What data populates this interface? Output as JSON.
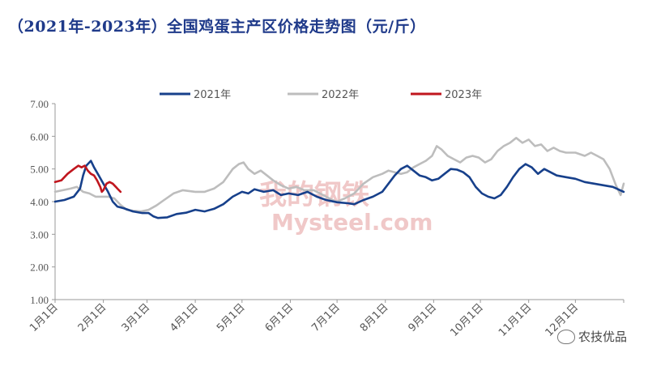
{
  "title": "（2021年-2023年）全国鸡蛋主产区价格走势图（元/斤）",
  "watermark": {
    "cn": "我的钢铁",
    "en": "Mysteel.com"
  },
  "brand": "农技优品",
  "colors": {
    "s2021": "#17408b",
    "s2022": "#bdbdbd",
    "s2023": "#c0161e"
  },
  "chart_data": {
    "type": "line",
    "ylim": [
      1.0,
      7.0
    ],
    "yticks": [
      "1.00",
      "2.00",
      "3.00",
      "4.00",
      "5.00",
      "6.00",
      "7.00"
    ],
    "xlim": [
      0,
      365
    ],
    "xticks": [
      {
        "label": "1月1日",
        "x": 0
      },
      {
        "label": "2月1日",
        "x": 31
      },
      {
        "label": "3月1日",
        "x": 59
      },
      {
        "label": "4月1日",
        "x": 90
      },
      {
        "label": "5月1日",
        "x": 120
      },
      {
        "label": "6月1日",
        "x": 151
      },
      {
        "label": "7月1日",
        "x": 181
      },
      {
        "label": "8月1日",
        "x": 212
      },
      {
        "label": "9月1日",
        "x": 243
      },
      {
        "label": "10月1日",
        "x": 273
      },
      {
        "label": "11月1日",
        "x": 304
      },
      {
        "label": "12月1日",
        "x": 334
      }
    ],
    "legend": "top",
    "series": [
      {
        "name": "2021年",
        "color_key": "s2021",
        "points": [
          [
            0,
            4.0
          ],
          [
            6,
            4.05
          ],
          [
            12,
            4.15
          ],
          [
            16,
            4.4
          ],
          [
            18,
            4.8
          ],
          [
            20,
            5.1
          ],
          [
            23,
            5.25
          ],
          [
            25,
            5.05
          ],
          [
            28,
            4.8
          ],
          [
            31,
            4.55
          ],
          [
            34,
            4.3
          ],
          [
            37,
            4.0
          ],
          [
            40,
            3.85
          ],
          [
            44,
            3.8
          ],
          [
            50,
            3.7
          ],
          [
            56,
            3.65
          ],
          [
            60,
            3.65
          ],
          [
            63,
            3.55
          ],
          [
            66,
            3.5
          ],
          [
            72,
            3.52
          ],
          [
            78,
            3.62
          ],
          [
            84,
            3.66
          ],
          [
            90,
            3.75
          ],
          [
            96,
            3.7
          ],
          [
            102,
            3.78
          ],
          [
            108,
            3.92
          ],
          [
            114,
            4.15
          ],
          [
            120,
            4.3
          ],
          [
            124,
            4.25
          ],
          [
            128,
            4.38
          ],
          [
            134,
            4.3
          ],
          [
            140,
            4.35
          ],
          [
            145,
            4.2
          ],
          [
            150,
            4.25
          ],
          [
            156,
            4.2
          ],
          [
            162,
            4.3
          ],
          [
            168,
            4.15
          ],
          [
            174,
            4.05
          ],
          [
            181,
            3.98
          ],
          [
            188,
            3.95
          ],
          [
            192,
            3.92
          ],
          [
            198,
            4.05
          ],
          [
            204,
            4.15
          ],
          [
            210,
            4.3
          ],
          [
            214,
            4.55
          ],
          [
            218,
            4.8
          ],
          [
            222,
            5.0
          ],
          [
            226,
            5.1
          ],
          [
            230,
            4.95
          ],
          [
            234,
            4.8
          ],
          [
            238,
            4.75
          ],
          [
            242,
            4.65
          ],
          [
            246,
            4.7
          ],
          [
            250,
            4.85
          ],
          [
            254,
            5.0
          ],
          [
            258,
            4.98
          ],
          [
            262,
            4.9
          ],
          [
            266,
            4.75
          ],
          [
            270,
            4.45
          ],
          [
            274,
            4.25
          ],
          [
            278,
            4.15
          ],
          [
            282,
            4.1
          ],
          [
            286,
            4.2
          ],
          [
            290,
            4.45
          ],
          [
            294,
            4.75
          ],
          [
            298,
            5.0
          ],
          [
            302,
            5.15
          ],
          [
            306,
            5.05
          ],
          [
            310,
            4.85
          ],
          [
            314,
            5.0
          ],
          [
            318,
            4.9
          ],
          [
            322,
            4.8
          ],
          [
            328,
            4.75
          ],
          [
            334,
            4.7
          ],
          [
            340,
            4.6
          ],
          [
            346,
            4.55
          ],
          [
            352,
            4.5
          ],
          [
            358,
            4.45
          ],
          [
            365,
            4.3
          ]
        ]
      },
      {
        "name": "2022年",
        "color_key": "s2022",
        "points": [
          [
            0,
            4.3
          ],
          [
            5,
            4.35
          ],
          [
            10,
            4.4
          ],
          [
            14,
            4.45
          ],
          [
            18,
            4.3
          ],
          [
            22,
            4.25
          ],
          [
            26,
            4.15
          ],
          [
            30,
            4.15
          ],
          [
            34,
            4.15
          ],
          [
            38,
            4.1
          ],
          [
            42,
            3.9
          ],
          [
            46,
            3.75
          ],
          [
            50,
            3.72
          ],
          [
            55,
            3.7
          ],
          [
            60,
            3.75
          ],
          [
            65,
            3.88
          ],
          [
            70,
            4.05
          ],
          [
            76,
            4.25
          ],
          [
            82,
            4.35
          ],
          [
            90,
            4.3
          ],
          [
            96,
            4.3
          ],
          [
            102,
            4.4
          ],
          [
            108,
            4.6
          ],
          [
            114,
            5.0
          ],
          [
            118,
            5.15
          ],
          [
            121,
            5.2
          ],
          [
            124,
            5.0
          ],
          [
            128,
            4.85
          ],
          [
            132,
            4.95
          ],
          [
            136,
            4.8
          ],
          [
            140,
            4.65
          ],
          [
            145,
            4.5
          ],
          [
            150,
            4.4
          ],
          [
            155,
            4.45
          ],
          [
            160,
            4.35
          ],
          [
            166,
            4.35
          ],
          [
            172,
            4.2
          ],
          [
            178,
            4.05
          ],
          [
            181,
            4.0
          ],
          [
            186,
            4.1
          ],
          [
            192,
            4.25
          ],
          [
            198,
            4.55
          ],
          [
            204,
            4.75
          ],
          [
            210,
            4.85
          ],
          [
            214,
            4.95
          ],
          [
            218,
            4.9
          ],
          [
            222,
            4.85
          ],
          [
            226,
            4.9
          ],
          [
            230,
            5.05
          ],
          [
            234,
            5.15
          ],
          [
            238,
            5.25
          ],
          [
            242,
            5.4
          ],
          [
            245,
            5.7
          ],
          [
            248,
            5.6
          ],
          [
            252,
            5.4
          ],
          [
            256,
            5.3
          ],
          [
            260,
            5.2
          ],
          [
            264,
            5.35
          ],
          [
            268,
            5.4
          ],
          [
            272,
            5.35
          ],
          [
            276,
            5.2
          ],
          [
            280,
            5.3
          ],
          [
            284,
            5.55
          ],
          [
            288,
            5.7
          ],
          [
            292,
            5.8
          ],
          [
            296,
            5.95
          ],
          [
            300,
            5.8
          ],
          [
            304,
            5.9
          ],
          [
            308,
            5.7
          ],
          [
            312,
            5.75
          ],
          [
            316,
            5.55
          ],
          [
            320,
            5.65
          ],
          [
            324,
            5.55
          ],
          [
            328,
            5.5
          ],
          [
            334,
            5.5
          ],
          [
            340,
            5.4
          ],
          [
            344,
            5.5
          ],
          [
            348,
            5.4
          ],
          [
            352,
            5.3
          ],
          [
            356,
            5.0
          ],
          [
            360,
            4.5
          ],
          [
            363,
            4.2
          ],
          [
            365,
            4.55
          ]
        ]
      },
      {
        "name": "2023年",
        "color_key": "s2023",
        "points": [
          [
            0,
            4.6
          ],
          [
            4,
            4.65
          ],
          [
            8,
            4.85
          ],
          [
            12,
            5.0
          ],
          [
            15,
            5.1
          ],
          [
            17,
            5.05
          ],
          [
            19,
            5.1
          ],
          [
            21,
            4.95
          ],
          [
            23,
            4.85
          ],
          [
            25,
            4.8
          ],
          [
            27,
            4.65
          ],
          [
            29,
            4.45
          ],
          [
            30,
            4.3
          ],
          [
            31,
            4.35
          ],
          [
            33,
            4.55
          ],
          [
            35,
            4.6
          ],
          [
            37,
            4.55
          ],
          [
            39,
            4.45
          ],
          [
            40,
            4.4
          ],
          [
            42,
            4.3
          ]
        ]
      }
    ]
  }
}
